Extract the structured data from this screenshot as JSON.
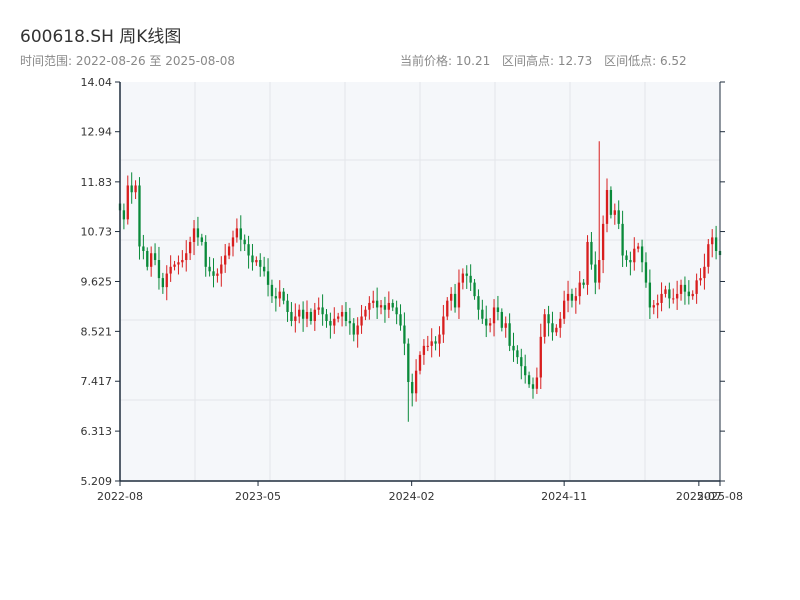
{
  "header": {
    "title": "600618.SH 周K线图",
    "range_text": "时间范围: 2022-08-26 至 2025-08-08",
    "current_price_text": "当前价格: 10.21",
    "high_text": "区间高点: 12.73",
    "low_text": "区间低点: 6.52"
  },
  "colors": {
    "up": "#d81e1e",
    "down": "#0a8a3a",
    "plot_bg": "#f5f7fa",
    "grid": "#e3e6ea",
    "axis": "#1f2d3d"
  },
  "chart_data": {
    "type": "candlestick",
    "title": "600618.SH 周K线图",
    "ylim": [
      5.209,
      14.04
    ],
    "y_ticks": [
      "14.04",
      "12.94",
      "11.83",
      "10.73",
      "9.625",
      "8.521",
      "7.417",
      "6.313",
      "5.209"
    ],
    "x_ticks": [
      "2022-08",
      "2023-05",
      "2024-02",
      "2024-11",
      "2025-07",
      "2025-08"
    ],
    "grid": true,
    "start_date": "2022-08-26",
    "end_date": "2025-08-08",
    "current_price": 10.21,
    "range_high": 12.73,
    "range_low": 6.52,
    "closes": [
      11.2,
      11.0,
      11.75,
      11.6,
      11.75,
      10.4,
      10.3,
      9.95,
      10.25,
      10.1,
      9.7,
      9.5,
      9.8,
      9.95,
      10.0,
      10.05,
      10.1,
      10.25,
      10.5,
      10.8,
      10.6,
      10.5,
      9.95,
      9.85,
      9.75,
      9.8,
      10.0,
      10.2,
      10.4,
      10.6,
      10.8,
      10.55,
      10.45,
      10.2,
      10.05,
      10.1,
      9.95,
      9.85,
      9.55,
      9.3,
      9.25,
      9.4,
      9.2,
      8.95,
      8.75,
      8.85,
      9.0,
      8.8,
      8.95,
      8.75,
      9.0,
      9.05,
      8.9,
      8.75,
      8.65,
      8.8,
      8.85,
      8.95,
      8.75,
      8.7,
      8.45,
      8.65,
      8.85,
      9.0,
      9.15,
      9.2,
      9.05,
      9.1,
      9.0,
      9.15,
      9.05,
      8.9,
      8.65,
      8.25,
      7.4,
      7.15,
      7.65,
      8.0,
      8.2,
      8.2,
      8.3,
      8.25,
      8.45,
      8.85,
      9.2,
      9.35,
      9.05,
      9.6,
      9.8,
      9.75,
      9.6,
      9.3,
      9.0,
      8.8,
      8.65,
      8.7,
      9.05,
      8.95,
      8.6,
      8.7,
      8.2,
      8.1,
      7.95,
      7.75,
      7.55,
      7.35,
      7.25,
      7.5,
      8.4,
      8.9,
      8.7,
      8.5,
      8.6,
      8.8,
      9.2,
      9.35,
      9.2,
      9.3,
      9.6,
      9.55,
      10.5,
      10.0,
      9.6,
      10.1,
      10.9,
      11.65,
      11.1,
      11.2,
      10.9,
      10.2,
      10.1,
      10.05,
      10.35,
      10.4,
      10.05,
      9.6,
      9.05,
      9.1,
      9.15,
      9.35,
      9.45,
      9.25,
      9.25,
      9.35,
      9.55,
      9.4,
      9.3,
      9.35,
      9.65,
      9.7,
      9.95,
      10.45,
      10.6,
      10.3,
      10.21
    ],
    "high_idx": 123,
    "low_idx": 74
  }
}
